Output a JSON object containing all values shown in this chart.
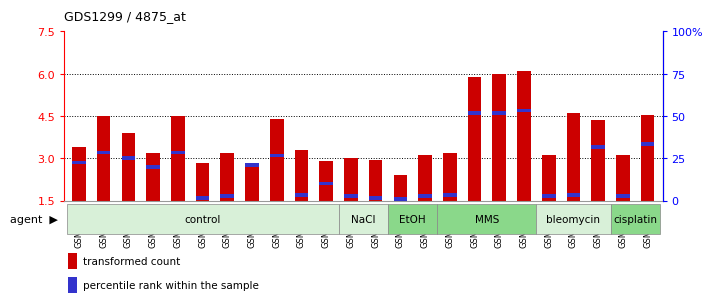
{
  "title": "GDS1299 / 4875_at",
  "samples": [
    "GSM40714",
    "GSM40715",
    "GSM40716",
    "GSM40717",
    "GSM40718",
    "GSM40719",
    "GSM40720",
    "GSM40721",
    "GSM40722",
    "GSM40723",
    "GSM40724",
    "GSM40725",
    "GSM40726",
    "GSM40727",
    "GSM40731",
    "GSM40732",
    "GSM40728",
    "GSM40729",
    "GSM40730",
    "GSM40733",
    "GSM40734",
    "GSM40735",
    "GSM40736",
    "GSM40737"
  ],
  "red_values": [
    3.4,
    4.5,
    3.9,
    3.2,
    4.5,
    2.85,
    3.2,
    2.8,
    4.4,
    3.3,
    2.9,
    3.0,
    2.95,
    2.4,
    3.1,
    3.2,
    5.9,
    6.0,
    6.1,
    3.1,
    4.6,
    4.35,
    3.1,
    4.55
  ],
  "blue_values": [
    2.85,
    3.2,
    3.0,
    2.7,
    3.2,
    1.6,
    1.65,
    2.75,
    3.1,
    1.7,
    2.1,
    1.65,
    1.6,
    1.55,
    1.65,
    1.7,
    4.6,
    4.6,
    4.7,
    1.65,
    1.7,
    3.4,
    1.65,
    3.5
  ],
  "bar_bottom": 1.5,
  "ylim": [
    1.5,
    7.5
  ],
  "yticks_left": [
    1.5,
    3.0,
    4.5,
    6.0,
    7.5
  ],
  "yticks_right_vals": [
    0,
    25,
    50,
    75,
    100
  ],
  "yticks_right_labels": [
    "0",
    "25",
    "50",
    "75",
    "100%"
  ],
  "groups": [
    {
      "label": "control",
      "start": 0,
      "end": 11,
      "light": true
    },
    {
      "label": "NaCl",
      "start": 11,
      "end": 13,
      "light": true
    },
    {
      "label": "EtOH",
      "start": 13,
      "end": 15,
      "light": false
    },
    {
      "label": "MMS",
      "start": 15,
      "end": 19,
      "light": false
    },
    {
      "label": "bleomycin",
      "start": 19,
      "end": 22,
      "light": true
    },
    {
      "label": "cisplatin",
      "start": 22,
      "end": 24,
      "light": false
    }
  ],
  "color_light": "#d8f0d8",
  "color_dark": "#8ad88a",
  "red_color": "#cc0000",
  "blue_color": "#3333cc",
  "bar_width": 0.55,
  "blue_bar_height": 0.13,
  "legend_red": "transformed count",
  "legend_blue": "percentile rank within the sample"
}
